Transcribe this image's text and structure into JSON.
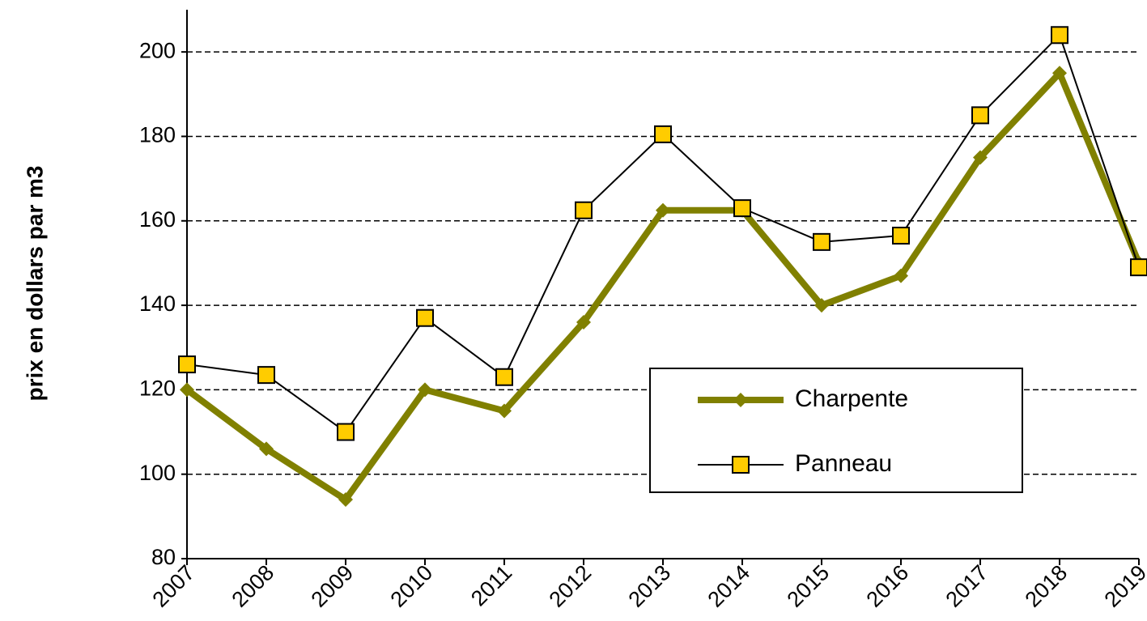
{
  "chart_data": {
    "type": "line",
    "y_label": "prix en dollars par m3",
    "categories": [
      "2007",
      "2008",
      "2009",
      "2010",
      "2011",
      "2012",
      "2013",
      "2014",
      "2015",
      "2016",
      "2017",
      "2018",
      "2019"
    ],
    "series": [
      {
        "name": "Charpente",
        "color": "#808000",
        "values": [
          120,
          106,
          94,
          120,
          115,
          136,
          162.5,
          162.5,
          140,
          147,
          175,
          195,
          150
        ]
      },
      {
        "name": "Panneau",
        "color": "#000000",
        "values": [
          126,
          123.5,
          110,
          137,
          123,
          162.5,
          180.5,
          163,
          155,
          156.5,
          185,
          204,
          149
        ]
      }
    ],
    "ylim": [
      80,
      210
    ],
    "yticks": [
      80,
      100,
      120,
      140,
      160,
      180,
      200
    ],
    "grid": true
  }
}
